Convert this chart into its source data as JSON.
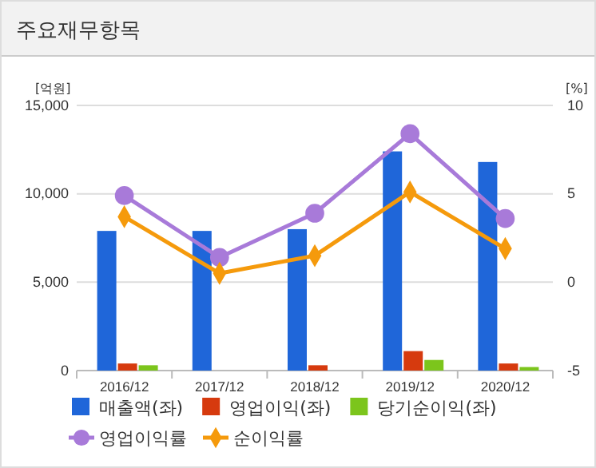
{
  "chart_data": {
    "type": "bar",
    "title": "주요재무항목",
    "ylabel": "[억원]",
    "y2label": "[%]",
    "categories": [
      "2016/12",
      "2017/12",
      "2018/12",
      "2019/12",
      "2020/12"
    ],
    "series": [
      {
        "name": "매출액(좌)",
        "color": "#1f66d9",
        "values": [
          7900,
          7900,
          8000,
          12400,
          11800
        ]
      },
      {
        "name": "영업이익(좌)",
        "color": "#d63a0e",
        "values": [
          400,
          0,
          300,
          1100,
          400
        ]
      },
      {
        "name": "당기순이익(좌)",
        "color": "#7cc51c",
        "values": [
          300,
          0,
          0,
          600,
          200
        ]
      },
      {
        "name": "영업이익률",
        "type": "line",
        "axis": "y2",
        "marker": "circle",
        "color": "#a87ad9",
        "values": [
          4.9,
          1.4,
          3.9,
          8.4,
          3.6
        ]
      },
      {
        "name": "순이익률",
        "type": "line",
        "axis": "y2",
        "marker": "diamond",
        "color": "#f59a0c",
        "values": [
          3.7,
          0.5,
          1.5,
          5.1,
          1.9
        ]
      }
    ],
    "ylim": [
      0,
      15000
    ],
    "yticks": [
      {
        "value": 0,
        "label": "0"
      },
      {
        "value": 5000,
        "label": "5,000"
      },
      {
        "value": 10000,
        "label": "10,000"
      },
      {
        "value": 15000,
        "label": "15,000"
      }
    ],
    "y2lim": [
      -5,
      10
    ],
    "y2ticks": [
      -5,
      0,
      5,
      10
    ],
    "grid": "y",
    "legend": "bottom"
  }
}
